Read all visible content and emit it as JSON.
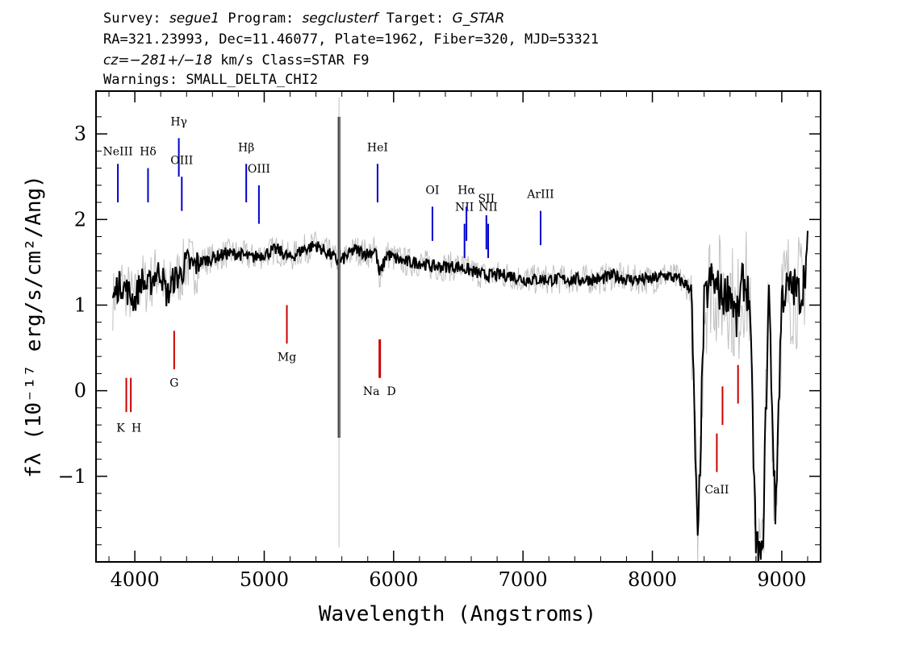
{
  "header": {
    "line1": {
      "survey_label": "Survey:",
      "survey": "segue1",
      "program_label": "Program:",
      "program": "segclusterf",
      "target_label": "Target:",
      "target": "G_STAR"
    },
    "line2": "RA=321.23993, Dec=11.46077, Plate=1962, Fiber=320, MJD=53321",
    "line3": {
      "cz": "cz=−281+/−18",
      "rest": " km/s Class=STAR F9"
    },
    "line4": "Warnings: SMALL_DELTA_CHI2"
  },
  "chart_data": {
    "type": "line",
    "xlabel": "Wavelength (Angstroms)",
    "ylabel": "fλ (10⁻¹⁷ erg/s/cm²/Ang)",
    "xlim": [
      3700,
      9300
    ],
    "ylim": [
      -2.0,
      3.5
    ],
    "x_ticks": [
      4000,
      5000,
      6000,
      7000,
      8000,
      9000
    ],
    "y_ticks": [
      -1,
      0,
      1,
      2,
      3
    ],
    "grid": false,
    "colors": {
      "flux": "#000000",
      "error": "#c0c0c0",
      "emission": "#0000cc",
      "absorption": "#cc0000"
    },
    "series": [
      {
        "role": "flux",
        "x": [
          3830,
          3860,
          3900,
          3950,
          4000,
          4050,
          4100,
          4150,
          4200,
          4250,
          4300,
          4350,
          4400,
          4450,
          4500,
          4600,
          4700,
          4800,
          4900,
          5000,
          5100,
          5200,
          5300,
          5400,
          5500,
          5580,
          5700,
          5800,
          5860,
          5890,
          5950,
          6000,
          6100,
          6200,
          6300,
          6400,
          6500,
          6600,
          6700,
          6800,
          6900,
          7000,
          7100,
          7200,
          7300,
          7400,
          7500,
          7600,
          7700,
          7800,
          7900,
          8000,
          8100,
          8200,
          8300,
          8350,
          8400,
          8450,
          8500,
          8550,
          8600,
          8650,
          8700,
          8750,
          8800,
          8850,
          8900,
          8950,
          9000,
          9050,
          9100,
          9150,
          9200
        ],
        "y": [
          1.05,
          1.2,
          1.25,
          1.15,
          1.05,
          1.3,
          1.2,
          1.35,
          1.4,
          1.1,
          1.3,
          1.35,
          1.5,
          1.45,
          1.5,
          1.55,
          1.6,
          1.6,
          1.55,
          1.6,
          1.65,
          1.55,
          1.65,
          1.7,
          1.6,
          1.5,
          1.65,
          1.6,
          1.65,
          1.35,
          1.6,
          1.55,
          1.5,
          1.5,
          1.45,
          1.45,
          1.45,
          1.4,
          1.35,
          1.35,
          1.35,
          1.3,
          1.3,
          1.3,
          1.3,
          1.3,
          1.3,
          1.3,
          1.35,
          1.3,
          1.3,
          1.3,
          1.35,
          1.3,
          1.2,
          -1.9,
          1.0,
          1.3,
          1.2,
          1.1,
          1.2,
          0.8,
          1.3,
          1.1,
          -1.8,
          -2.0,
          1.2,
          -1.5,
          1.1,
          1.2,
          1.2,
          1.1,
          1.65
        ]
      }
    ],
    "spikes": [
      {
        "x": 5578,
        "y_low": -0.55,
        "y_high": 3.2
      }
    ],
    "emission_lines": [
      {
        "label": "NeIII",
        "x": 3869,
        "y_low": 2.2,
        "y_high": 2.65,
        "label_y": 2.75
      },
      {
        "label": "Hδ",
        "x": 4102,
        "y_low": 2.2,
        "y_high": 2.6,
        "label_y": 2.75
      },
      {
        "label": "Hγ",
        "x": 4340,
        "y_low": 2.5,
        "y_high": 2.95,
        "label_y": 3.1
      },
      {
        "label": "OIII",
        "x": 4363,
        "y_low": 2.1,
        "y_high": 2.5,
        "label_y": 2.65
      },
      {
        "label": "Hβ",
        "x": 4861,
        "y_low": 2.2,
        "y_high": 2.65,
        "label_y": 2.8
      },
      {
        "label": "OIII",
        "x": 4959,
        "y_low": 1.95,
        "y_high": 2.4,
        "label_y": 2.55
      },
      {
        "label": "HeI",
        "x": 5876,
        "y_low": 2.2,
        "y_high": 2.65,
        "label_y": 2.8
      },
      {
        "label": "OI",
        "x": 6300,
        "y_low": 1.75,
        "y_high": 2.15,
        "label_y": 2.3
      },
      {
        "label": "NII",
        "x": 6548,
        "y_low": 1.55,
        "y_high": 1.95,
        "label_y": 2.1
      },
      {
        "label": "Hα",
        "x": 6563,
        "y_low": 1.75,
        "y_high": 2.15,
        "label_y": 2.3
      },
      {
        "label": "SII",
        "x": 6717,
        "y_low": 1.65,
        "y_high": 2.05,
        "label_y": 2.2
      },
      {
        "label": "NII",
        "x": 6731,
        "y_low": 1.55,
        "y_high": 1.95,
        "label_y": 2.1
      },
      {
        "label": "ArIII",
        "x": 7136,
        "y_low": 1.7,
        "y_high": 2.1,
        "label_y": 2.25
      }
    ],
    "absorption_lines": [
      {
        "label": "K",
        "x": 3934,
        "y_low": -0.25,
        "y_high": 0.15,
        "label_y": -0.48
      },
      {
        "label": "H",
        "x": 3969,
        "y_low": -0.25,
        "y_high": 0.15,
        "label_y": -0.48
      },
      {
        "label": "G",
        "x": 4304,
        "y_low": 0.25,
        "y_high": 0.7,
        "label_y": 0.05
      },
      {
        "label": "Mg",
        "x": 5175,
        "y_low": 0.55,
        "y_high": 1.0,
        "label_y": 0.35
      },
      {
        "label": "Na",
        "x": 5890,
        "y_low": 0.15,
        "y_high": 0.6,
        "label_y": -0.05
      },
      {
        "label": "D",
        "x": 5896,
        "y_low": 0.15,
        "y_high": 0.6,
        "label_y": -0.05
      },
      {
        "label": "CaII",
        "x": 8498,
        "y_low": -0.95,
        "y_high": -0.5,
        "label_y": -1.2
      },
      {
        "label": "CaII",
        "x": 8542,
        "y_low": -0.4,
        "y_high": 0.05
      },
      {
        "label": "CaII",
        "x": 8662,
        "y_low": -0.15,
        "y_high": 0.3
      }
    ]
  }
}
